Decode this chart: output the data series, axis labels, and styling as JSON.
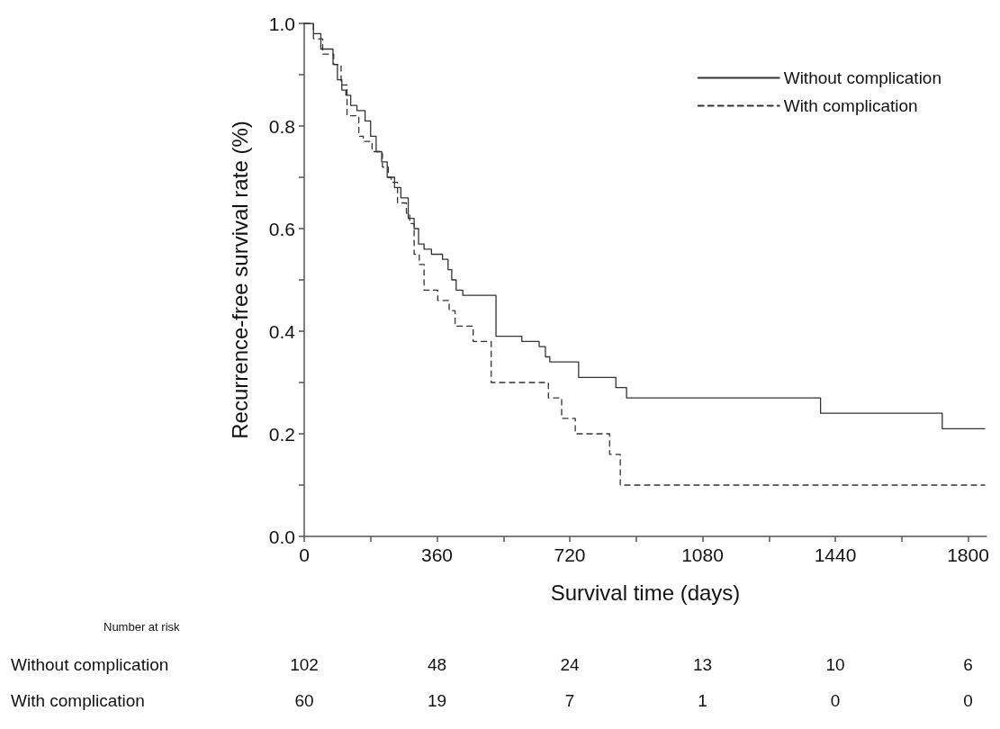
{
  "chart_data": {
    "type": "step",
    "xlabel": "Survival time (days)",
    "ylabel": "Recurrence-free survival rate (%)",
    "xlim": [
      0,
      1850
    ],
    "xticks": [
      0,
      {
        "value": 180,
        "label": null
      },
      360,
      {
        "value": 540,
        "label": null
      },
      720,
      {
        "value": 900,
        "label": null
      },
      1080,
      {
        "value": 1260,
        "label": null
      },
      1440,
      {
        "value": 1620,
        "label": null
      },
      1800
    ],
    "ylim": [
      0,
      1
    ],
    "yticks": [
      {
        "value": 0,
        "label": "0.0"
      },
      {
        "value": 0.1,
        "label": null
      },
      0.2,
      {
        "value": 0.3,
        "label": null
      },
      0.4,
      {
        "value": 0.5,
        "label": null
      },
      0.6,
      {
        "value": 0.7,
        "label": null
      },
      0.8,
      {
        "value": 0.9,
        "label": null
      },
      {
        "value": 1,
        "label": "1.0"
      }
    ],
    "grid": false,
    "legend": "top right",
    "series": [
      {
        "name": "Without complication",
        "color": "#333333",
        "line_style": "solid",
        "x": [
          0,
          25,
          45,
          78,
          90,
          102,
          113,
          126,
          143,
          165,
          180,
          195,
          210,
          225,
          245,
          262,
          282,
          298,
          310,
          325,
          345,
          375,
          390,
          400,
          412,
          430,
          520,
          590,
          637,
          654,
          666,
          744,
          845,
          874,
          1400,
          1730,
          1845
        ],
        "values": [
          1,
          0.98,
          0.95,
          0.92,
          0.89,
          0.87,
          0.86,
          0.84,
          0.83,
          0.81,
          0.78,
          0.75,
          0.73,
          0.7,
          0.68,
          0.66,
          0.62,
          0.6,
          0.57,
          0.56,
          0.55,
          0.54,
          0.52,
          0.5,
          0.48,
          0.47,
          0.39,
          0.38,
          0.37,
          0.35,
          0.34,
          0.31,
          0.29,
          0.27,
          0.24,
          0.21,
          0.21
        ]
      },
      {
        "name": "With complication",
        "color": "#333333",
        "line_style": "dashed",
        "x": [
          0,
          25,
          50,
          80,
          100,
          116,
          148,
          160,
          184,
          212,
          228,
          236,
          253,
          277,
          286,
          298,
          312,
          325,
          362,
          393,
          409,
          458,
          507,
          662,
          698,
          735,
          828,
          857,
          1845
        ],
        "values": [
          1,
          0.97,
          0.94,
          0.92,
          0.88,
          0.82,
          0.78,
          0.77,
          0.75,
          0.72,
          0.7,
          0.69,
          0.65,
          0.63,
          0.61,
          0.55,
          0.53,
          0.48,
          0.46,
          0.44,
          0.41,
          0.38,
          0.3,
          0.27,
          0.23,
          0.2,
          0.16,
          0.1,
          0.1
        ]
      }
    ],
    "annotations": [
      "Number at risk",
      "Without complication",
      "102",
      "48",
      "24",
      "13",
      "10",
      "6",
      "With complication",
      "60",
      "19",
      "7",
      "1",
      "0",
      "0"
    ]
  }
}
